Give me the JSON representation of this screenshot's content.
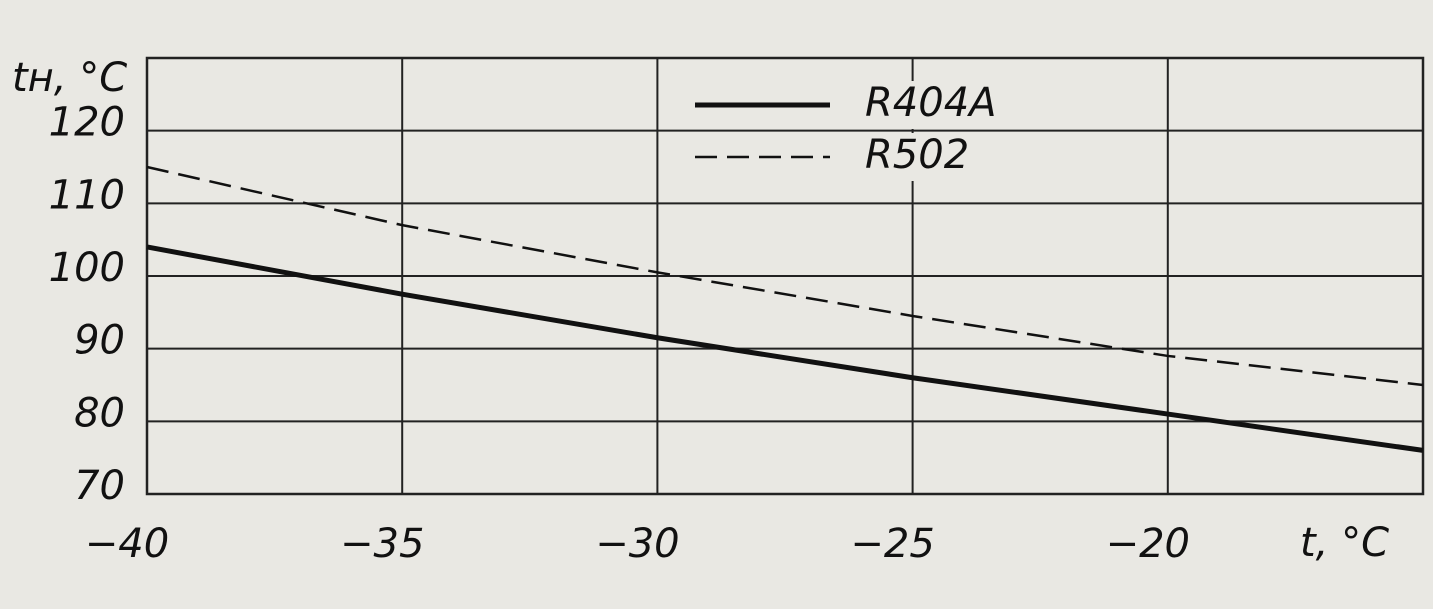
{
  "chart_data": {
    "type": "line",
    "x_label": "t, °C",
    "y_label": "tн, °C",
    "x": [
      -40,
      -35,
      -30,
      -25,
      -20,
      -15
    ],
    "series": [
      {
        "name": "R404A",
        "color": "#111111",
        "style": "solid",
        "values": [
          104,
          97.5,
          91.5,
          86,
          81,
          76
        ]
      },
      {
        "name": "R502",
        "color": "#111111",
        "style": "dashed",
        "values": [
          115,
          107,
          100.5,
          94.5,
          89,
          85
        ]
      }
    ],
    "xlim": [
      -40,
      -15
    ],
    "xticks": [
      {
        "value": -40,
        "label": "−40"
      },
      {
        "value": -35,
        "label": "−35"
      },
      {
        "value": -30,
        "label": "−30"
      },
      {
        "value": -25,
        "label": "−25"
      },
      {
        "value": -20,
        "label": "−20"
      }
    ],
    "ylim": [
      70,
      130
    ],
    "yticks": [
      70,
      80,
      90,
      100,
      110,
      120
    ],
    "grid": true,
    "legend": "top"
  }
}
